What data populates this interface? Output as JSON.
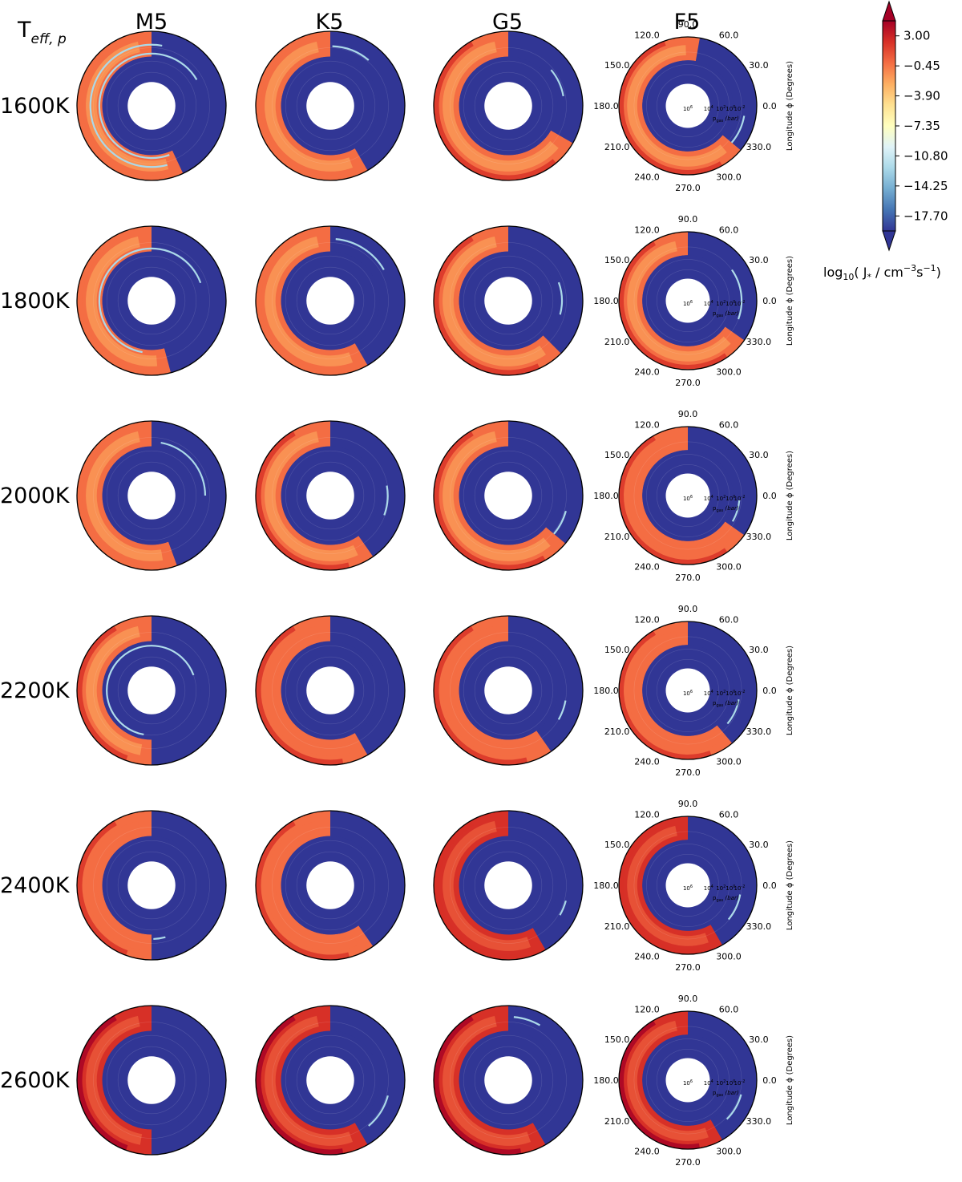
{
  "figure": {
    "row_header": "T",
    "row_header_sub": "eff, p",
    "columns": [
      "M5",
      "K5",
      "G5",
      "F5"
    ],
    "rows": [
      "1600K",
      "1800K",
      "2000K",
      "2200K",
      "2400K",
      "2600K"
    ]
  },
  "chart_data": {
    "type": "heatmap",
    "projection": "polar",
    "panel_grid": {
      "rows": 6,
      "cols": 4
    },
    "angle_axis": {
      "label": "Longitude ϕ (Degrees)",
      "ticks": [
        "0.0",
        "30.0",
        "60.0",
        "90.0",
        "120.0",
        "150.0",
        "180.0",
        "210.0",
        "240.0",
        "270.0",
        "300.0",
        "330.0"
      ]
    },
    "radial_axis": {
      "label_main": "p",
      "label_sub": "gas",
      "label_unit": "(bar)",
      "ticks": [
        {
          "base": "10",
          "exp": "6"
        },
        {
          "base": "10",
          "exp": "4"
        },
        {
          "base": "10",
          "exp": "2"
        },
        {
          "base": "10",
          "exp": "0"
        },
        {
          "base": "10",
          "exp": "-2"
        }
      ]
    },
    "colorbar": {
      "label_pre": "log",
      "label_sub": "10",
      "label_mid": "( J",
      "label_sub2": "*",
      "label_mid2": " / cm",
      "label_sup": "−3",
      "label_mid3": "s",
      "label_sup2": "−1",
      "label_end": ")",
      "ticks": [
        "3.00",
        "−0.45",
        "−3.90",
        "−7.35",
        "−10.80",
        "−14.25",
        "−17.70"
      ],
      "extend": "both",
      "colormap": "RdYlBu_r",
      "colors": [
        "#313695",
        "#4575b4",
        "#74add1",
        "#abd9e9",
        "#e0f3f8",
        "#ffffbf",
        "#fee090",
        "#fdae61",
        "#f46d43",
        "#d73027",
        "#a50026"
      ]
    },
    "annotated_panels": "col F5 only",
    "panels": [
      {
        "row": 0,
        "col": 0,
        "outer_level": -2.4,
        "dayside_level": -4.0,
        "night_start": 90,
        "night_end": 295,
        "thin_lines": [
          [
            0.82,
            80,
            285
          ],
          [
            0.7,
            30,
            290
          ]
        ]
      },
      {
        "row": 0,
        "col": 1,
        "outer_level": -2.0,
        "dayside_level": -3.5,
        "night_start": 90,
        "night_end": 300,
        "thin_lines": [
          [
            0.8,
            50,
            88
          ]
        ]
      },
      {
        "row": 0,
        "col": 2,
        "outer_level": -1.7,
        "dayside_level": -3.3,
        "night_start": 90,
        "night_end": 330,
        "thin_lines": [
          [
            0.75,
            10,
            40
          ]
        ]
      },
      {
        "row": 0,
        "col": 3,
        "outer_level": -1.5,
        "dayside_level": -3.0,
        "night_start": 80,
        "night_end": 320,
        "thin_lines": [
          [
            0.83,
            320,
            350
          ]
        ]
      },
      {
        "row": 1,
        "col": 0,
        "outer_level": -2.6,
        "dayside_level": -4.5,
        "night_start": 90,
        "night_end": 285,
        "thin_lines": [
          [
            0.7,
            20,
            260
          ]
        ]
      },
      {
        "row": 1,
        "col": 1,
        "outer_level": -2.0,
        "dayside_level": -3.5,
        "night_start": 90,
        "night_end": 300,
        "thin_lines": [
          [
            0.83,
            30,
            85
          ]
        ]
      },
      {
        "row": 1,
        "col": 2,
        "outer_level": -1.6,
        "dayside_level": -3.2,
        "night_start": 90,
        "night_end": 315,
        "thin_lines": [
          [
            0.72,
            345,
            20
          ]
        ]
      },
      {
        "row": 1,
        "col": 3,
        "outer_level": -1.4,
        "dayside_level": -3.0,
        "night_start": 90,
        "night_end": 325,
        "thin_lines": [
          [
            0.78,
            340,
            35
          ]
        ]
      },
      {
        "row": 2,
        "col": 0,
        "outer_level": -2.2,
        "dayside_level": -4.2,
        "night_start": 90,
        "night_end": 290,
        "thin_lines": [
          [
            0.72,
            0,
            80
          ]
        ]
      },
      {
        "row": 2,
        "col": 1,
        "outer_level": -1.4,
        "dayside_level": -3.0,
        "night_start": 90,
        "night_end": 305,
        "thin_lines": [
          [
            0.77,
            340,
            10
          ]
        ]
      },
      {
        "row": 2,
        "col": 2,
        "outer_level": -1.1,
        "dayside_level": -2.8,
        "night_start": 90,
        "night_end": 320,
        "thin_lines": [
          [
            0.8,
            320,
            345
          ]
        ]
      },
      {
        "row": 2,
        "col": 3,
        "outer_level": -1.0,
        "dayside_level": -2.5,
        "night_start": 90,
        "night_end": 325,
        "thin_lines": [
          [
            0.75,
            330,
            355
          ]
        ]
      },
      {
        "row": 3,
        "col": 0,
        "outer_level": -1.6,
        "dayside_level": -3.6,
        "night_start": 90,
        "night_end": 270,
        "thin_lines": [
          [
            0.6,
            20,
            260
          ]
        ]
      },
      {
        "row": 3,
        "col": 1,
        "outer_level": -1.1,
        "dayside_level": -2.6,
        "night_start": 90,
        "night_end": 300,
        "thin_lines": []
      },
      {
        "row": 3,
        "col": 2,
        "outer_level": -0.9,
        "dayside_level": -2.4,
        "night_start": 90,
        "night_end": 305,
        "thin_lines": [
          [
            0.78,
            330,
            350
          ]
        ]
      },
      {
        "row": 3,
        "col": 3,
        "outer_level": -0.8,
        "dayside_level": -2.2,
        "night_start": 90,
        "night_end": 310,
        "thin_lines": [
          [
            0.75,
            320,
            350
          ]
        ]
      },
      {
        "row": 4,
        "col": 0,
        "outer_level": -0.9,
        "dayside_level": -2.6,
        "night_start": 90,
        "night_end": 270,
        "thin_lines": [
          [
            0.72,
            272,
            285
          ]
        ]
      },
      {
        "row": 4,
        "col": 1,
        "outer_level": -0.5,
        "dayside_level": -2.0,
        "night_start": 90,
        "night_end": 305,
        "thin_lines": []
      },
      {
        "row": 4,
        "col": 2,
        "outer_level": -0.3,
        "dayside_level": -1.8,
        "night_start": 90,
        "night_end": 300,
        "thin_lines": [
          [
            0.8,
            330,
            345
          ]
        ]
      },
      {
        "row": 4,
        "col": 3,
        "outer_level": -0.2,
        "dayside_level": -1.6,
        "night_start": 90,
        "night_end": 300,
        "thin_lines": [
          [
            0.77,
            320,
            350
          ]
        ]
      },
      {
        "row": 5,
        "col": 0,
        "outer_level": 0.4,
        "dayside_level": -1.5,
        "night_start": 90,
        "night_end": 270,
        "thin_lines": []
      },
      {
        "row": 5,
        "col": 1,
        "outer_level": 0.8,
        "dayside_level": -1.0,
        "night_start": 90,
        "night_end": 300,
        "thin_lines": [
          [
            0.8,
            310,
            345
          ]
        ]
      },
      {
        "row": 5,
        "col": 2,
        "outer_level": 0.8,
        "dayside_level": -1.0,
        "night_start": 90,
        "night_end": 300,
        "thin_lines": [
          [
            0.85,
            60,
            85
          ]
        ]
      },
      {
        "row": 5,
        "col": 3,
        "outer_level": 1.0,
        "dayside_level": -0.8,
        "night_start": 90,
        "night_end": 300,
        "thin_lines": [
          [
            0.8,
            315,
            345
          ]
        ]
      }
    ],
    "night_level": -18.5,
    "inner_ring_level": -18.5
  }
}
